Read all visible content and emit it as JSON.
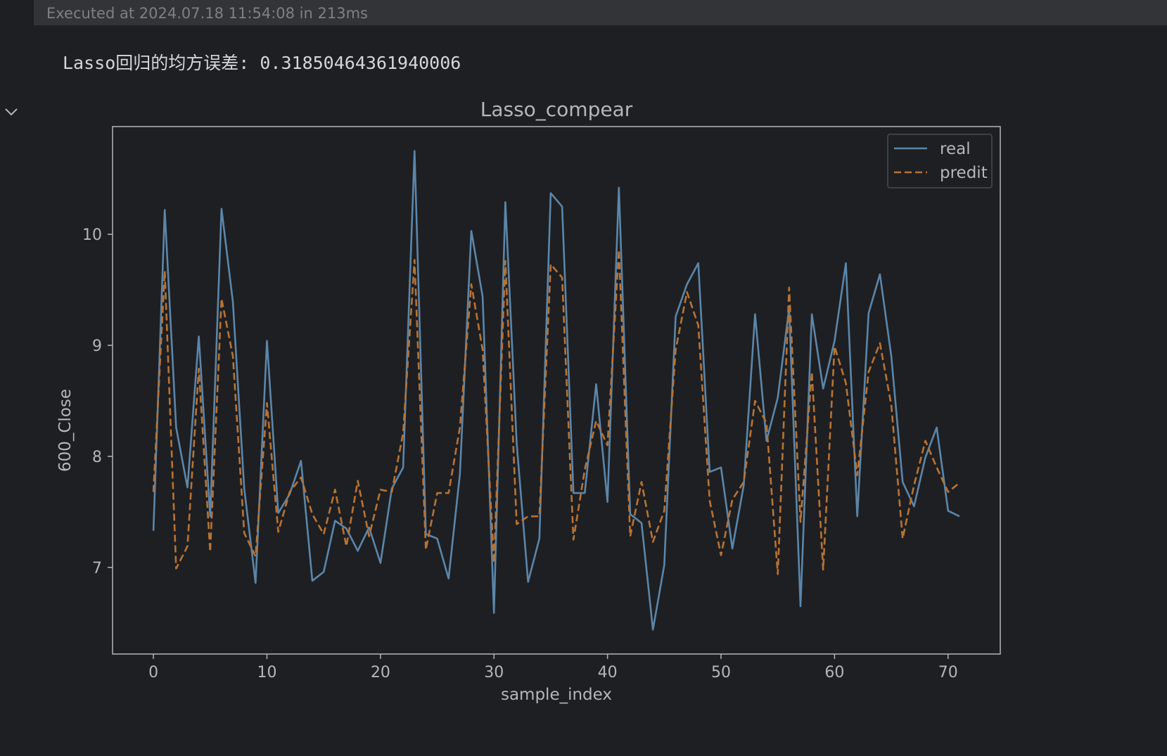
{
  "execution": {
    "status_text": "Executed at 2024.07.18 11:54:08 in 213ms"
  },
  "output": {
    "text": "Lasso回归的均方误差: 0.31850464361940006"
  },
  "toggle": {
    "icon": "chevron-down-icon"
  },
  "colors": {
    "background": "#1e1f22",
    "plot_background": "#1e1f22",
    "real_line": "#5b86aa",
    "predit_line": "#b87333",
    "text": "#b4b6bb"
  },
  "chart_data": {
    "type": "line",
    "title": "Lasso_compear",
    "xlabel": "sample_index",
    "ylabel": "600_Close",
    "xlim": [
      -3.6,
      74.6
    ],
    "ylim": [
      6.22,
      10.97
    ],
    "xticks": [
      0,
      10,
      20,
      30,
      40,
      50,
      60,
      70
    ],
    "yticks": [
      7,
      8,
      9,
      10
    ],
    "legend_position": "top-right",
    "grid": false,
    "x": [
      0,
      1,
      2,
      3,
      4,
      5,
      6,
      7,
      8,
      9,
      10,
      11,
      12,
      13,
      14,
      15,
      16,
      17,
      18,
      19,
      20,
      21,
      22,
      23,
      24,
      25,
      26,
      27,
      28,
      29,
      30,
      31,
      32,
      33,
      34,
      35,
      36,
      37,
      38,
      39,
      40,
      41,
      42,
      43,
      44,
      45,
      46,
      47,
      48,
      49,
      50,
      51,
      52,
      53,
      54,
      55,
      56,
      57,
      58,
      59,
      60,
      61,
      62,
      63,
      64,
      65,
      66,
      67,
      68,
      69,
      70,
      71
    ],
    "series": [
      {
        "name": "real",
        "style": "solid",
        "values": [
          7.33,
          10.22,
          8.26,
          7.72,
          9.08,
          7.46,
          10.23,
          9.39,
          7.71,
          6.86,
          9.04,
          7.49,
          7.66,
          7.96,
          6.88,
          6.96,
          7.42,
          7.35,
          7.15,
          7.36,
          7.04,
          7.71,
          7.9,
          10.75,
          7.3,
          7.26,
          6.9,
          7.84,
          10.03,
          9.44,
          6.59,
          10.29,
          8.12,
          6.87,
          7.26,
          10.37,
          10.25,
          7.67,
          7.67,
          8.65,
          7.59,
          10.42,
          7.48,
          7.4,
          6.44,
          7.02,
          9.26,
          9.55,
          9.74,
          7.86,
          7.9,
          7.17,
          7.74,
          9.28,
          8.14,
          8.53,
          9.33,
          6.65,
          9.28,
          8.61,
          9.04,
          9.74,
          7.46,
          9.29,
          9.64,
          8.9,
          7.77,
          7.55,
          7.99,
          8.26,
          7.51,
          7.46
        ]
      },
      {
        "name": "predit",
        "style": "dashed",
        "values": [
          7.68,
          9.67,
          6.99,
          7.19,
          8.79,
          7.14,
          9.42,
          8.9,
          7.31,
          7.1,
          8.48,
          7.32,
          7.68,
          7.81,
          7.48,
          7.3,
          7.7,
          7.19,
          7.78,
          7.28,
          7.7,
          7.68,
          8.21,
          9.77,
          7.16,
          7.67,
          7.67,
          8.26,
          9.55,
          8.96,
          7.04,
          9.76,
          7.39,
          7.46,
          7.46,
          9.73,
          9.61,
          7.25,
          7.88,
          8.32,
          8.1,
          9.86,
          7.28,
          7.77,
          7.23,
          7.51,
          8.96,
          9.48,
          9.18,
          7.6,
          7.11,
          7.61,
          7.77,
          8.5,
          8.3,
          6.94,
          9.52,
          7.41,
          8.76,
          6.98,
          8.99,
          8.66,
          7.83,
          8.76,
          9.02,
          8.46,
          7.26,
          7.74,
          8.14,
          7.9,
          7.68,
          7.76
        ]
      }
    ]
  }
}
